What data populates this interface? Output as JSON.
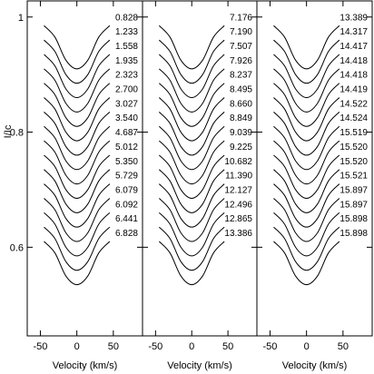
{
  "chart_data": [
    {
      "type": "line",
      "y_label": "I/Ic",
      "x_label": "Velocity (km/s)",
      "xlim": [
        -68,
        90
      ],
      "ylim": [
        0.446,
        1.028
      ],
      "xticks": [
        -50,
        0,
        50
      ],
      "yticks": [
        0.6,
        0.8,
        1
      ],
      "x": [
        -45,
        -30,
        -15,
        0,
        15,
        30,
        45
      ],
      "series": [
        {
          "name": "0.828",
          "color": "#000",
          "values": [
            0.985,
            0.965,
            0.925,
            0.91,
            0.925,
            0.965,
            0.985
          ]
        },
        {
          "name": "1.233",
          "color": "#000",
          "values": [
            0.96,
            0.94,
            0.9,
            0.885,
            0.9,
            0.94,
            0.96
          ]
        },
        {
          "name": "1.558",
          "color": "#000",
          "values": [
            0.935,
            0.915,
            0.875,
            0.86,
            0.875,
            0.915,
            0.935
          ]
        },
        {
          "name": "1.935",
          "color": "#000",
          "values": [
            0.91,
            0.89,
            0.85,
            0.835,
            0.85,
            0.89,
            0.91
          ]
        },
        {
          "name": "2.323",
          "color": "#000",
          "values": [
            0.885,
            0.865,
            0.825,
            0.81,
            0.825,
            0.865,
            0.885
          ]
        },
        {
          "name": "2.700",
          "color": "#000",
          "values": [
            0.86,
            0.84,
            0.8,
            0.785,
            0.8,
            0.84,
            0.86
          ]
        },
        {
          "name": "3.027",
          "color": "#000",
          "values": [
            0.835,
            0.815,
            0.775,
            0.76,
            0.775,
            0.815,
            0.835
          ]
        },
        {
          "name": "3.540",
          "color": "#000",
          "values": [
            0.81,
            0.79,
            0.75,
            0.735,
            0.75,
            0.79,
            0.81
          ]
        },
        {
          "name": "4.687",
          "color": "#000",
          "values": [
            0.785,
            0.765,
            0.725,
            0.71,
            0.725,
            0.765,
            0.785
          ]
        },
        {
          "name": "5.012",
          "color": "#000",
          "values": [
            0.76,
            0.74,
            0.7,
            0.685,
            0.7,
            0.74,
            0.76
          ]
        },
        {
          "name": "5.350",
          "color": "#000",
          "values": [
            0.735,
            0.715,
            0.675,
            0.66,
            0.675,
            0.715,
            0.735
          ]
        },
        {
          "name": "5.729",
          "color": "#000",
          "values": [
            0.71,
            0.69,
            0.65,
            0.635,
            0.65,
            0.69,
            0.71
          ]
        },
        {
          "name": "6.079",
          "color": "#000",
          "values": [
            0.685,
            0.665,
            0.625,
            0.61,
            0.625,
            0.665,
            0.685
          ]
        },
        {
          "name": "6.092",
          "color": "#000",
          "values": [
            0.66,
            0.64,
            0.6,
            0.585,
            0.6,
            0.64,
            0.66
          ]
        },
        {
          "name": "6.441",
          "color": "#000",
          "values": [
            0.635,
            0.615,
            0.575,
            0.56,
            0.575,
            0.615,
            0.635
          ]
        },
        {
          "name": "6.828",
          "color": "#000",
          "values": [
            0.61,
            0.59,
            0.55,
            0.535,
            0.55,
            0.59,
            0.61
          ]
        }
      ]
    },
    {
      "type": "line",
      "x_label": "Velocity (km/s)",
      "xlim": [
        -68,
        90
      ],
      "ylim": [
        0.446,
        1.028
      ],
      "xticks": [
        -50,
        0,
        50
      ],
      "yticks": [
        0.6,
        0.8,
        1
      ],
      "x": [
        -45,
        -30,
        -15,
        0,
        15,
        30,
        45
      ],
      "series": [
        {
          "name": "7.176",
          "color": "#000",
          "values": [
            0.985,
            0.965,
            0.925,
            0.91,
            0.925,
            0.965,
            0.985
          ]
        },
        {
          "name": "7.190",
          "color": "#000",
          "values": [
            0.96,
            0.94,
            0.9,
            0.885,
            0.9,
            0.94,
            0.96
          ]
        },
        {
          "name": "7.507",
          "color": "#000",
          "values": [
            0.935,
            0.915,
            0.875,
            0.86,
            0.875,
            0.915,
            0.935
          ]
        },
        {
          "name": "7.926",
          "color": "#000",
          "values": [
            0.91,
            0.89,
            0.85,
            0.835,
            0.85,
            0.89,
            0.91
          ]
        },
        {
          "name": "8.237",
          "color": "#000",
          "values": [
            0.885,
            0.865,
            0.825,
            0.81,
            0.825,
            0.865,
            0.885
          ]
        },
        {
          "name": "8.495",
          "color": "#000",
          "values": [
            0.86,
            0.84,
            0.8,
            0.785,
            0.8,
            0.84,
            0.86
          ]
        },
        {
          "name": "8.660",
          "color": "#000",
          "values": [
            0.835,
            0.815,
            0.775,
            0.76,
            0.775,
            0.815,
            0.835
          ]
        },
        {
          "name": "8.849",
          "color": "#000",
          "values": [
            0.81,
            0.79,
            0.75,
            0.735,
            0.75,
            0.79,
            0.81
          ]
        },
        {
          "name": "9.039",
          "color": "#000",
          "values": [
            0.785,
            0.765,
            0.725,
            0.71,
            0.725,
            0.765,
            0.785
          ]
        },
        {
          "name": "9.225",
          "color": "#000",
          "values": [
            0.76,
            0.74,
            0.7,
            0.685,
            0.7,
            0.74,
            0.76
          ]
        },
        {
          "name": "10.682",
          "color": "#000",
          "values": [
            0.735,
            0.715,
            0.675,
            0.66,
            0.675,
            0.715,
            0.735
          ]
        },
        {
          "name": "11.390",
          "color": "#000",
          "values": [
            0.71,
            0.69,
            0.65,
            0.635,
            0.65,
            0.69,
            0.71
          ]
        },
        {
          "name": "12.127",
          "color": "#000",
          "values": [
            0.685,
            0.665,
            0.625,
            0.61,
            0.625,
            0.665,
            0.685
          ]
        },
        {
          "name": "12.496",
          "color": "#000",
          "values": [
            0.66,
            0.64,
            0.6,
            0.585,
            0.6,
            0.64,
            0.66
          ]
        },
        {
          "name": "12.865",
          "color": "#000",
          "values": [
            0.635,
            0.615,
            0.575,
            0.56,
            0.575,
            0.615,
            0.635
          ]
        },
        {
          "name": "13.386",
          "color": "#000",
          "values": [
            0.61,
            0.59,
            0.55,
            0.535,
            0.55,
            0.59,
            0.61
          ]
        }
      ]
    },
    {
      "type": "line",
      "x_label": "Velocity (km/s)",
      "xlim": [
        -68,
        90
      ],
      "ylim": [
        0.446,
        1.028
      ],
      "xticks": [
        -50,
        0,
        50
      ],
      "yticks": [
        0.6,
        0.8,
        1
      ],
      "x": [
        -45,
        -30,
        -15,
        0,
        15,
        30,
        45
      ],
      "series": [
        {
          "name": "13.389",
          "color": "#000",
          "values": [
            0.985,
            0.965,
            0.925,
            0.91,
            0.925,
            0.965,
            0.985
          ]
        },
        {
          "name": "14.317",
          "color": "#000",
          "values": [
            0.96,
            0.94,
            0.9,
            0.885,
            0.9,
            0.94,
            0.96
          ]
        },
        {
          "name": "14.417",
          "color": "#000",
          "values": [
            0.935,
            0.915,
            0.875,
            0.86,
            0.875,
            0.915,
            0.935
          ]
        },
        {
          "name": "14.418",
          "color": "#000",
          "values": [
            0.91,
            0.89,
            0.85,
            0.835,
            0.85,
            0.89,
            0.91
          ]
        },
        {
          "name": "14.418",
          "color": "#000",
          "values": [
            0.885,
            0.865,
            0.825,
            0.81,
            0.825,
            0.865,
            0.885
          ]
        },
        {
          "name": "14.419",
          "color": "#000",
          "values": [
            0.86,
            0.84,
            0.8,
            0.785,
            0.8,
            0.84,
            0.86
          ]
        },
        {
          "name": "14.522",
          "color": "#000",
          "values": [
            0.835,
            0.815,
            0.775,
            0.76,
            0.775,
            0.815,
            0.835
          ]
        },
        {
          "name": "14.524",
          "color": "#000",
          "values": [
            0.81,
            0.79,
            0.75,
            0.735,
            0.75,
            0.79,
            0.81
          ]
        },
        {
          "name": "15.519",
          "color": "#000",
          "values": [
            0.785,
            0.765,
            0.725,
            0.71,
            0.725,
            0.765,
            0.785
          ]
        },
        {
          "name": "15.520",
          "color": "#000",
          "values": [
            0.76,
            0.74,
            0.7,
            0.685,
            0.7,
            0.74,
            0.76
          ]
        },
        {
          "name": "15.520",
          "color": "#000",
          "values": [
            0.735,
            0.715,
            0.675,
            0.66,
            0.675,
            0.715,
            0.735
          ]
        },
        {
          "name": "15.521",
          "color": "#000",
          "values": [
            0.71,
            0.69,
            0.65,
            0.635,
            0.65,
            0.69,
            0.71
          ]
        },
        {
          "name": "15.897",
          "color": "#000",
          "values": [
            0.685,
            0.665,
            0.625,
            0.61,
            0.625,
            0.665,
            0.685
          ]
        },
        {
          "name": "15.897",
          "color": "#000",
          "values": [
            0.66,
            0.64,
            0.6,
            0.585,
            0.6,
            0.64,
            0.66
          ]
        },
        {
          "name": "15.898",
          "color": "#000",
          "values": [
            0.635,
            0.615,
            0.575,
            0.56,
            0.575,
            0.615,
            0.635
          ]
        },
        {
          "name": "15.898",
          "color": "#000",
          "values": [
            0.61,
            0.59,
            0.55,
            0.535,
            0.55,
            0.59,
            0.61
          ]
        }
      ]
    }
  ]
}
